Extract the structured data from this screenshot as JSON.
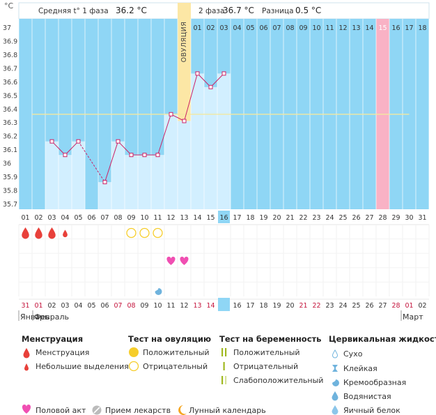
{
  "header": {
    "phase1_label": "Средняя t° 1 фаза",
    "phase1_value": "36.2 °C",
    "phase2_label": "2 фаза",
    "phase2_value": "36.7 °C",
    "diff_label": "Разница",
    "diff_value": "0.5 °C",
    "unit": "°C"
  },
  "ovulation_label": "ОВУЛЯЦИЯ",
  "chart_data": {
    "type": "line",
    "y_ticks": [
      "37",
      "36.9",
      "36.8",
      "36.7",
      "36.6",
      "36.5",
      "36.4",
      "36.3",
      "36.2",
      "36.1",
      "36",
      "35.9",
      "35.8",
      "35.7"
    ],
    "ylim": [
      35.7,
      37.0
    ],
    "cycle_days": [
      "01",
      "02",
      "03",
      "04",
      "05",
      "06",
      "07",
      "08",
      "09",
      "10",
      "11",
      "12",
      "13",
      "14",
      "15",
      "16",
      "17",
      "18",
      "19",
      "20",
      "21",
      "22",
      "23",
      "24",
      "25",
      "26",
      "27",
      "28",
      "29",
      "30",
      "31"
    ],
    "temperatures": [
      null,
      null,
      36.2,
      36.1,
      36.2,
      null,
      35.9,
      36.2,
      36.1,
      36.1,
      36.1,
      36.4,
      36.35,
      36.7,
      36.6,
      36.7,
      null,
      null,
      null,
      null,
      null,
      null,
      null,
      null,
      null,
      null,
      null,
      null,
      null,
      null,
      null
    ],
    "dashed_segments": [
      [
        5,
        7
      ]
    ],
    "coverline": 36.4,
    "ovulation_day": 13,
    "current_cycle_day": 16,
    "phase2_days": [
      "01",
      "02",
      "03",
      "04",
      "05",
      "06",
      "07",
      "08",
      "09",
      "10",
      "11",
      "12",
      "13",
      "14",
      "15",
      "16",
      "17",
      "18"
    ],
    "phase2_highlight": "15",
    "dates": [
      {
        "d": "31",
        "red": true
      },
      {
        "d": "01",
        "red": true
      },
      {
        "d": "02",
        "red": false
      },
      {
        "d": "03",
        "red": false
      },
      {
        "d": "04",
        "red": false
      },
      {
        "d": "05",
        "red": false
      },
      {
        "d": "06",
        "red": false
      },
      {
        "d": "07",
        "red": true
      },
      {
        "d": "08",
        "red": true
      },
      {
        "d": "09",
        "red": false
      },
      {
        "d": "10",
        "red": false
      },
      {
        "d": "11",
        "red": false
      },
      {
        "d": "12",
        "red": false
      },
      {
        "d": "13",
        "red": true
      },
      {
        "d": "14",
        "red": true
      },
      {
        "d": "15",
        "red": false
      },
      {
        "d": "16",
        "red": false
      },
      {
        "d": "17",
        "red": false
      },
      {
        "d": "18",
        "red": false
      },
      {
        "d": "19",
        "red": false
      },
      {
        "d": "20",
        "red": false
      },
      {
        "d": "21",
        "red": true
      },
      {
        "d": "22",
        "red": true
      },
      {
        "d": "23",
        "red": false
      },
      {
        "d": "24",
        "red": false
      },
      {
        "d": "25",
        "red": false
      },
      {
        "d": "26",
        "red": false
      },
      {
        "d": "27",
        "red": false
      },
      {
        "d": "28",
        "red": true
      },
      {
        "d": "01",
        "red": true
      },
      {
        "d": "02",
        "red": false
      }
    ],
    "months": [
      "Январь",
      "Февраль",
      "Март"
    ],
    "menstruation": {
      "large": [
        1,
        2,
        3
      ],
      "small": [
        4
      ]
    },
    "ovulation_tests_negative": [
      9,
      10,
      11
    ],
    "intercourse_days": [
      12,
      13
    ],
    "cervical_fluid": [
      {
        "day": 11,
        "kind": "Кремообразная"
      }
    ],
    "colors": {
      "sky": "#8fd6f5",
      "bar": "#d2efff",
      "ovulation": "#fce7a5",
      "highlight": "#f9b2c5",
      "line": "#cc2266",
      "coverline": "#f2e8a0",
      "blood": "#e8403a",
      "heart": "#f04fb2",
      "test": "#f6cd2a"
    }
  },
  "legend": {
    "menstruation": {
      "title": "Менструация",
      "items": [
        "Менструация",
        "Небольшие выделения"
      ]
    },
    "ovulation_test": {
      "title": "Тест на овуляцию",
      "items": [
        "Положительный",
        "Отрицательный"
      ]
    },
    "pregnancy_test": {
      "title": "Тест на беременность",
      "items": [
        "Положительный",
        "Отрицательный",
        "Слабоположительный"
      ]
    },
    "cervical": {
      "title": "Цервикальная жидкость",
      "items": [
        "Сухо",
        "Клейкая",
        "Кремообразная",
        "Водянистая",
        "Яичный белок"
      ]
    },
    "bottom": [
      "Половой акт",
      "Прием лекарств",
      "Лунный календарь"
    ]
  }
}
